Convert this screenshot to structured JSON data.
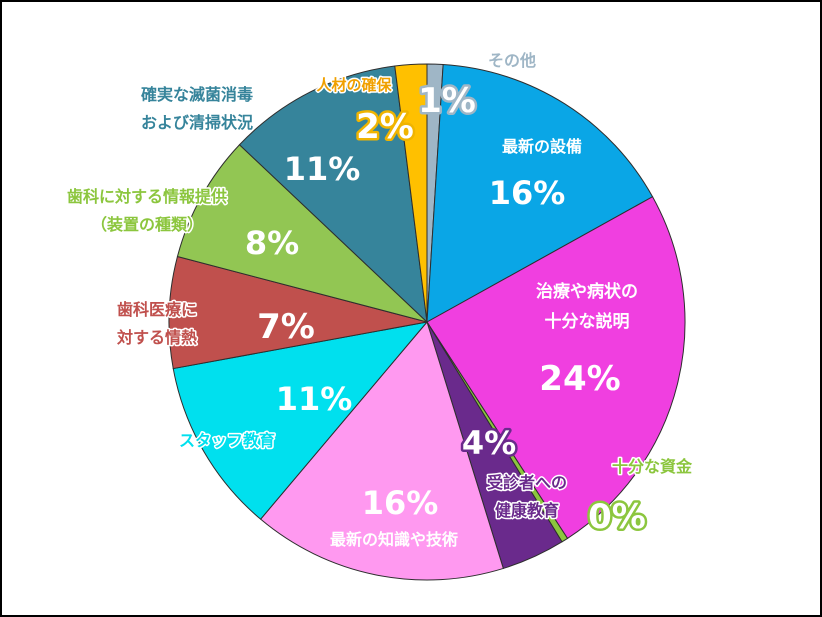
{
  "chart_data": {
    "type": "pie",
    "title": "",
    "start": "12 o'clock",
    "direction": "clockwise",
    "slices": [
      {
        "label": "その他",
        "value": 1,
        "value_label": "1%",
        "color": "#9fb6c6"
      },
      {
        "label": "最新の設備",
        "value": 16,
        "value_label": "16%",
        "color": "#0aa6e6"
      },
      {
        "label": "治療や病状の十分な説明",
        "value": 24,
        "value_label": "24%",
        "color": "#f03fe0"
      },
      {
        "label": "十分な資金",
        "value": 0.4,
        "value_label": "0%",
        "color": "#8cc63e"
      },
      {
        "label": "受診者への健康教育",
        "value": 4,
        "value_label": "4%",
        "color": "#6a2a8c"
      },
      {
        "label": "最新の知識や技術",
        "value": 16,
        "value_label": "16%",
        "color": "#ff99f0"
      },
      {
        "label": "スタッフ教育",
        "value": 11,
        "value_label": "11%",
        "color": "#00e0ee"
      },
      {
        "label": "歯科医療に対する情熱",
        "value": 7,
        "value_label": "7%",
        "color": "#c0504d"
      },
      {
        "label": "歯科に対する情報提供（装置の種類）",
        "value": 8,
        "value_label": "8%",
        "color": "#92c653"
      },
      {
        "label": "確実な滅菌消毒および清掃状況",
        "value": 11,
        "value_label": "11%",
        "color": "#36849b"
      },
      {
        "label": "人材の確保",
        "value": 2,
        "value_label": "2%",
        "color": "#ffc000"
      }
    ],
    "label_lines": [
      [
        "その他"
      ],
      [
        "最新の設備"
      ],
      [
        "治療や病状の",
        "十分な説明"
      ],
      [
        "十分な資金"
      ],
      [
        "受診者への",
        "健康教育"
      ],
      [
        "最新の知識や技術"
      ],
      [
        "スタッフ教育"
      ],
      [
        "歯科医療に",
        "対する情熱"
      ],
      [
        "歯科に対する情報提供",
        "（装置の種類）"
      ],
      [
        "確実な滅菌消毒",
        "および清掃状況"
      ],
      [
        "人材の確保"
      ]
    ]
  }
}
